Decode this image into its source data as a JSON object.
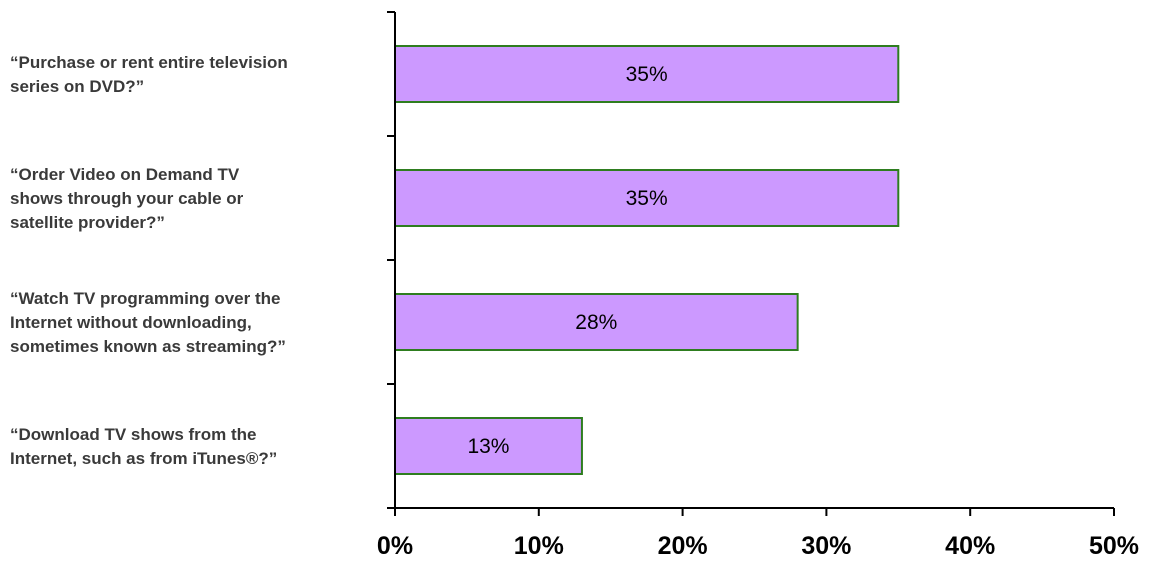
{
  "chart_data": {
    "type": "bar",
    "orientation": "horizontal",
    "categories": [
      [
        "“Purchase or rent entire television",
        "series on DVD?”"
      ],
      [
        "“Order Video on Demand TV",
        "shows through your cable or",
        "satellite provider?”"
      ],
      [
        "“Watch TV programming over the",
        "Internet without downloading,",
        "sometimes known as streaming?”"
      ],
      [
        "“Download TV shows from the",
        "Internet, such as from iTunes®?”"
      ]
    ],
    "values": [
      35,
      35,
      28,
      13
    ],
    "data_labels": [
      "35%",
      "35%",
      "28%",
      "13%"
    ],
    "xlim": [
      0,
      50
    ],
    "xticks": [
      0,
      10,
      20,
      30,
      40,
      50
    ],
    "xtick_labels": [
      "0%",
      "10%",
      "20%",
      "30%",
      "40%",
      "50%"
    ],
    "title": "",
    "xlabel": "",
    "ylabel": "",
    "grid": false,
    "legend": "none",
    "colors": {
      "bar_fill": "#cc99ff",
      "bar_stroke": "#2e7d1f",
      "axis": "#000000",
      "category_text": "#3a3a3a"
    }
  }
}
